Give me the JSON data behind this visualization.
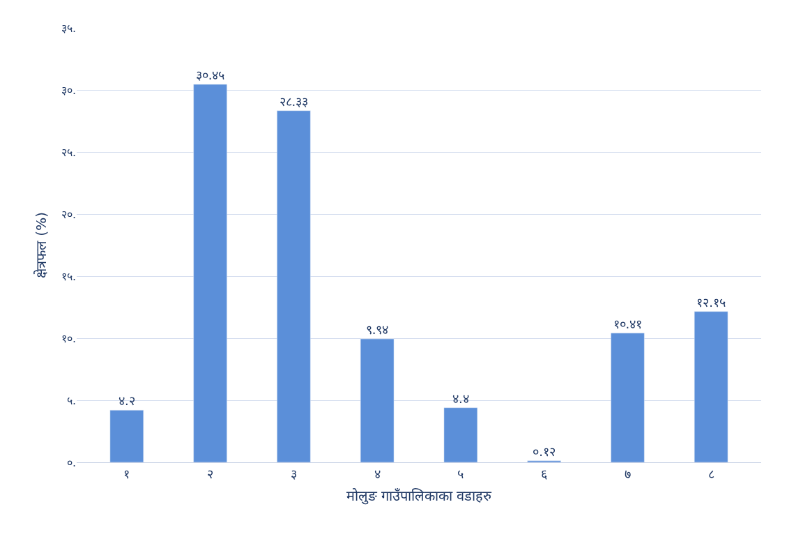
{
  "chart_data": {
    "type": "bar",
    "xlabel": "मोलुङ गाउँपालिकाका वडाहरु",
    "ylabel": "क्षेत्रफल (%)",
    "categories": [
      "१",
      "२",
      "३",
      "४",
      "५",
      "६",
      "७",
      "८"
    ],
    "values": [
      4.2,
      30.45,
      28.33,
      9.94,
      4.4,
      0.12,
      10.41,
      12.15
    ],
    "value_labels": [
      "४.२",
      "३०.४५",
      "२८.३३",
      "९.९४",
      "४.४",
      "०.१२",
      "१०.४१",
      "१२.१५"
    ],
    "color": "#5b8fd9",
    "ylim": [
      0,
      35
    ],
    "yticks": [
      {
        "value": 0,
        "label": "०."
      },
      {
        "value": 5,
        "label": "५."
      },
      {
        "value": 10,
        "label": "१०."
      },
      {
        "value": 15,
        "label": "१५."
      },
      {
        "value": 20,
        "label": "२०."
      },
      {
        "value": 25,
        "label": "२५."
      },
      {
        "value": 30,
        "label": "३०."
      },
      {
        "value": 35,
        "label": "३५."
      }
    ],
    "grid": "y"
  }
}
